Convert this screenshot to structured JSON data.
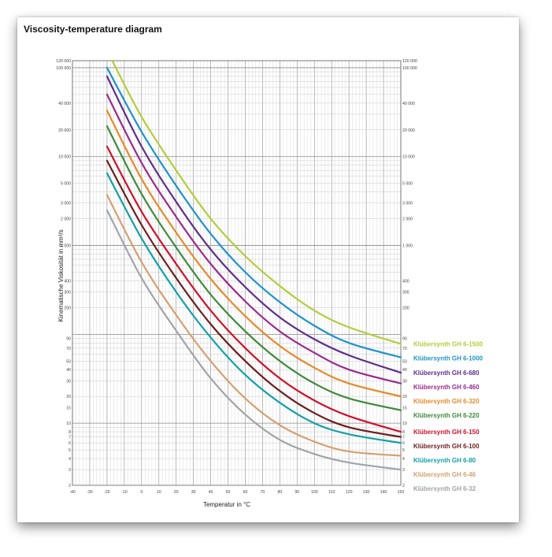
{
  "page": {
    "heading": "Viscosity-temperature diagram"
  },
  "chart_data": {
    "type": "line",
    "title": "",
    "xlabel": "Temperatur in °C",
    "ylabel": "Kinematische Viskosität in mm²/s",
    "xlim": [
      -40,
      150
    ],
    "ylim": [
      2,
      120000
    ],
    "yscale": "log",
    "grid": true,
    "legend_placement": "right, at line ends",
    "x_ticks": [
      "-40",
      "-30",
      "-20",
      "-10",
      "0",
      "10",
      "20",
      "30",
      "40",
      "50",
      "60",
      "70",
      "80",
      "90",
      "100",
      "110",
      "120",
      "130",
      "140",
      "150"
    ],
    "y_tick_values": [
      2,
      3,
      4,
      5,
      6,
      7,
      8,
      10,
      15,
      20,
      30,
      40,
      50,
      70,
      90,
      200,
      300,
      400,
      1000,
      2000,
      3000,
      5000,
      10000,
      20000,
      40000,
      100000,
      120000
    ],
    "y_tick_labels": [
      "2",
      "3",
      "4",
      "5",
      "6",
      "7",
      "8",
      "10",
      "15",
      "20",
      "30",
      "40",
      "50",
      "70",
      "90",
      "200",
      "300",
      "400",
      "1 000",
      "2 000",
      "3 000",
      "5 000",
      "10 000",
      "20 000",
      "40 000",
      "100 000",
      "120 000"
    ],
    "series": [
      {
        "name": "Klübersynth GH 6-1500",
        "color": "#b4cc3a",
        "x": [
          -17,
          0,
          20,
          40,
          60,
          80,
          100,
          120,
          150
        ],
        "y": [
          120000,
          28000,
          7000,
          2000,
          760,
          350,
          185,
          120,
          78
        ]
      },
      {
        "name": "Klübersynth GH 6-1000",
        "color": "#1f93c9",
        "x": [
          -20,
          0,
          20,
          40,
          60,
          80,
          100,
          120,
          150
        ],
        "y": [
          100000,
          19000,
          4700,
          1350,
          500,
          230,
          125,
          80,
          55
        ]
      },
      {
        "name": "Klübersynth GH 6-680",
        "color": "#5f2d8c",
        "x": [
          -20,
          0,
          20,
          40,
          60,
          80,
          100,
          120,
          150
        ],
        "y": [
          80000,
          13000,
          3100,
          900,
          340,
          155,
          88,
          58,
          37
        ]
      },
      {
        "name": "Klübersynth GH 6-460",
        "color": "#9b2a8c",
        "x": [
          -20,
          0,
          20,
          40,
          60,
          80,
          100,
          120,
          150
        ],
        "y": [
          50000,
          8500,
          2100,
          620,
          235,
          108,
          62,
          40,
          28
        ]
      },
      {
        "name": "Klübersynth GH 6-320",
        "color": "#e58a2a",
        "x": [
          -20,
          0,
          20,
          40,
          60,
          80,
          100,
          120,
          150
        ],
        "y": [
          33000,
          5600,
          1400,
          420,
          160,
          74,
          42,
          28,
          20
        ]
      },
      {
        "name": "Klübersynth GH 6-220",
        "color": "#3e8a3a",
        "x": [
          -20,
          0,
          20,
          40,
          60,
          80,
          100,
          120,
          150
        ],
        "y": [
          22000,
          3800,
          950,
          280,
          108,
          50,
          28,
          19,
          14
        ]
      },
      {
        "name": "Klübersynth GH 6-150",
        "color": "#d0102a",
        "x": [
          -20,
          0,
          20,
          40,
          60,
          80,
          100,
          120,
          150
        ],
        "y": [
          13000,
          2400,
          620,
          185,
          70,
          32,
          18,
          12,
          8
        ]
      },
      {
        "name": "Klübersynth GH 6-100",
        "color": "#6e1d1d",
        "x": [
          -20,
          0,
          20,
          40,
          60,
          80,
          100,
          120,
          150
        ],
        "y": [
          9000,
          1700,
          430,
          130,
          50,
          23,
          13,
          9,
          7
        ]
      },
      {
        "name": "Klübersynth GH 6-80",
        "color": "#13a0a8",
        "x": [
          -20,
          0,
          20,
          40,
          60,
          80,
          100,
          120,
          150
        ],
        "y": [
          6500,
          1200,
          300,
          92,
          35,
          17,
          10,
          7.5,
          6
        ]
      },
      {
        "name": "Klübersynth GH 6-46",
        "color": "#d4a070",
        "x": [
          -20,
          0,
          20,
          40,
          60,
          80,
          100,
          120,
          150
        ],
        "y": [
          3700,
          650,
          165,
          50,
          19,
          9.5,
          6.2,
          4.8,
          4.3
        ]
      },
      {
        "name": "Klübersynth GH 6-32",
        "color": "#a0a4a8",
        "x": [
          -20,
          0,
          20,
          40,
          60,
          80,
          100,
          120,
          150
        ],
        "y": [
          2500,
          430,
          110,
          32,
          12.5,
          6.5,
          4.5,
          3.6,
          3
        ]
      }
    ]
  }
}
